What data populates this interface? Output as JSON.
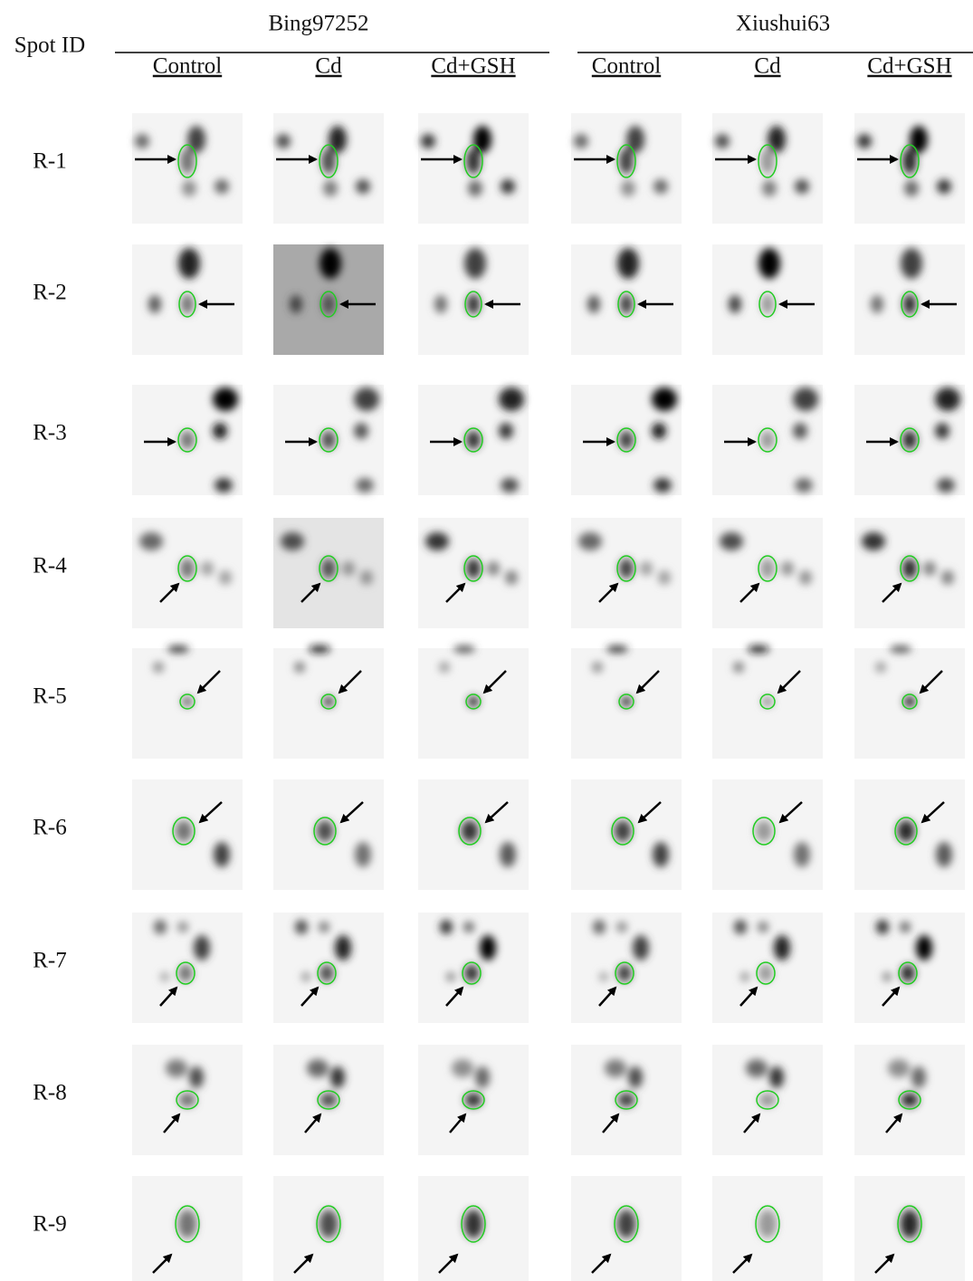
{
  "header": {
    "spot_id": "Spot ID",
    "groups": [
      {
        "name": "Bing97252",
        "treatments": [
          "Control",
          "Cd",
          "Cd+GSH"
        ]
      },
      {
        "name": "Xiushui63",
        "treatments": [
          "Control",
          "Cd",
          "Cd+GSH"
        ]
      }
    ]
  },
  "rows": [
    "R-1",
    "R-2",
    "R-3",
    "R-4",
    "R-5",
    "R-6",
    "R-7",
    "R-8",
    "R-9"
  ]
}
